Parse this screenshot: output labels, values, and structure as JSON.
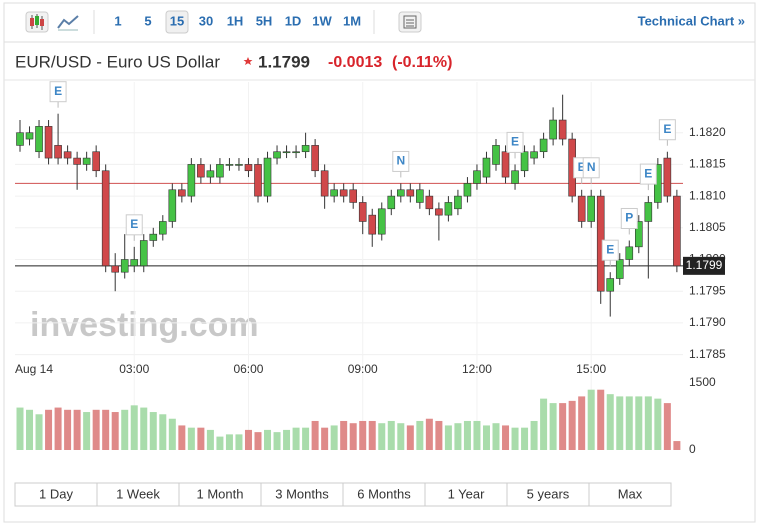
{
  "toolbar": {
    "intervals": [
      "1",
      "5",
      "15",
      "30",
      "1H",
      "5H",
      "1D",
      "1W",
      "1M"
    ],
    "active": "15",
    "link": "Technical Chart »"
  },
  "header": {
    "symbol": "EUR/USD - Euro US Dollar",
    "price": 1.1799,
    "change": -0.0013,
    "change_percent_label": "(-0.11%)"
  },
  "chart_data": {
    "type": "candlestick",
    "categories": [
      "Aug 14",
      null,
      null,
      null,
      null,
      null,
      null,
      null,
      null,
      null,
      null,
      null,
      "03:00",
      null,
      null,
      null,
      null,
      null,
      null,
      null,
      null,
      null,
      null,
      null,
      "06:00",
      null,
      null,
      null,
      null,
      null,
      null,
      null,
      null,
      null,
      null,
      null,
      "09:00",
      null,
      null,
      null,
      null,
      null,
      null,
      null,
      null,
      null,
      null,
      null,
      "12:00",
      null,
      null,
      null,
      null,
      null,
      null,
      null,
      null,
      null,
      null,
      null,
      "15:00",
      null,
      null,
      null,
      null,
      null,
      null,
      null,
      null,
      null
    ],
    "open": [
      1.1818,
      1.1819,
      1.1817,
      1.1821,
      1.1818,
      1.1817,
      1.1816,
      1.1815,
      1.1817,
      1.1814,
      1.1799,
      1.1798,
      1.1799,
      1.1799,
      1.1803,
      1.1804,
      1.1806,
      1.1811,
      1.181,
      1.1815,
      1.1813,
      1.1813,
      1.1815,
      1.1815,
      1.1815,
      1.1815,
      1.181,
      1.1816,
      1.1817,
      1.1817,
      1.1817,
      1.1818,
      1.1814,
      1.181,
      1.1811,
      1.1811,
      1.1809,
      1.1807,
      1.1804,
      1.1808,
      1.181,
      1.1811,
      1.1809,
      1.181,
      1.1808,
      1.1807,
      1.1808,
      1.181,
      1.1812,
      1.1813,
      1.1815,
      1.1817,
      1.1812,
      1.1814,
      1.1816,
      1.1817,
      1.1819,
      1.1822,
      1.1819,
      1.181,
      1.1806,
      1.181,
      1.1795,
      1.1797,
      1.18,
      1.1802,
      1.1806,
      1.1809,
      1.1816,
      1.181
    ],
    "high": [
      1.1822,
      1.1821,
      1.1822,
      1.1822,
      1.1823,
      1.1818,
      1.1817,
      1.1817,
      1.1818,
      1.1815,
      1.1801,
      1.1804,
      1.1802,
      1.1804,
      1.1805,
      1.1807,
      1.1812,
      1.1812,
      1.1816,
      1.1816,
      1.1815,
      1.1816,
      1.1816,
      1.1816,
      1.1816,
      1.1816,
      1.1817,
      1.1818,
      1.1818,
      1.1818,
      1.182,
      1.1819,
      1.1815,
      1.1812,
      1.1812,
      1.1812,
      1.181,
      1.1808,
      1.1809,
      1.1811,
      1.1812,
      1.1812,
      1.1812,
      1.1811,
      1.1809,
      1.181,
      1.1811,
      1.1813,
      1.1815,
      1.1817,
      1.1819,
      1.1818,
      1.1815,
      1.1818,
      1.1818,
      1.182,
      1.1824,
      1.1826,
      1.182,
      1.1811,
      1.1811,
      1.1811,
      1.1798,
      1.1801,
      1.1803,
      1.1807,
      1.181,
      1.1816,
      1.1817,
      1.1811
    ],
    "low": [
      1.1817,
      1.1818,
      1.1816,
      1.1815,
      1.1815,
      1.1815,
      1.1811,
      1.1814,
      1.1813,
      1.1798,
      1.1795,
      1.1797,
      1.1798,
      1.1798,
      1.1802,
      1.1803,
      1.1805,
      1.1809,
      1.1809,
      1.1812,
      1.1812,
      1.1812,
      1.1814,
      1.1814,
      1.1813,
      1.1809,
      1.1809,
      1.1815,
      1.1816,
      1.1816,
      1.1816,
      1.1813,
      1.1808,
      1.1809,
      1.1809,
      1.1808,
      1.1804,
      1.1802,
      1.1803,
      1.1807,
      1.1809,
      1.1809,
      1.1808,
      1.1807,
      1.1803,
      1.1806,
      1.1807,
      1.1809,
      1.1811,
      1.1812,
      1.1814,
      1.1812,
      1.1811,
      1.1813,
      1.1815,
      1.1816,
      1.1818,
      1.1818,
      1.1809,
      1.1805,
      1.1805,
      1.1793,
      1.1791,
      1.1796,
      1.1799,
      1.1801,
      1.1797,
      1.1808,
      1.1809,
      1.1798
    ],
    "close": [
      1.182,
      1.182,
      1.1821,
      1.1816,
      1.1816,
      1.1816,
      1.1815,
      1.1816,
      1.1814,
      1.1799,
      1.1798,
      1.18,
      1.18,
      1.1803,
      1.1804,
      1.1806,
      1.1811,
      1.181,
      1.1815,
      1.1813,
      1.1814,
      1.1815,
      1.1815,
      1.1815,
      1.1814,
      1.181,
      1.1816,
      1.1817,
      1.1817,
      1.1817,
      1.1818,
      1.1814,
      1.181,
      1.1811,
      1.181,
      1.1809,
      1.1806,
      1.1804,
      1.1808,
      1.181,
      1.1811,
      1.181,
      1.1811,
      1.1808,
      1.1807,
      1.1809,
      1.181,
      1.1812,
      1.1814,
      1.1816,
      1.1818,
      1.1813,
      1.1814,
      1.1817,
      1.1817,
      1.1819,
      1.1822,
      1.1819,
      1.181,
      1.1806,
      1.181,
      1.1795,
      1.1797,
      1.18,
      1.1802,
      1.1806,
      1.1809,
      1.1815,
      1.181,
      1.1799
    ],
    "volume": [
      950,
      900,
      800,
      900,
      950,
      900,
      900,
      850,
      900,
      900,
      850,
      900,
      1000,
      950,
      850,
      800,
      700,
      550,
      500,
      500,
      450,
      300,
      350,
      350,
      450,
      400,
      450,
      400,
      450,
      500,
      500,
      650,
      500,
      550,
      650,
      600,
      650,
      650,
      600,
      650,
      600,
      550,
      650,
      700,
      650,
      550,
      600,
      650,
      650,
      550,
      600,
      550,
      500,
      500,
      650,
      1150,
      1050,
      1050,
      1100,
      1200,
      1350,
      1350,
      1250,
      1200,
      1200,
      1200,
      1200,
      1150,
      1050,
      200
    ],
    "ylim": [
      1.1785,
      1.1828
    ],
    "yticks": [
      {
        "value": 1.182,
        "label": "1.1820"
      },
      1.1815,
      {
        "value": 1.181,
        "label": "1.1810"
      },
      1.1805,
      {
        "value": 1.18,
        "label": "1.1800"
      },
      1.1795,
      {
        "value": 1.179,
        "label": "1.1790"
      },
      1.1785
    ],
    "volume_ylim": [
      0,
      1500
    ],
    "volume_ticks": [
      0,
      1500
    ],
    "previous_close": 1.1812,
    "up_color": "#45c245",
    "down_color": "#d0484a",
    "volume_up_color": "#a9dcab",
    "volume_down_color": "#df8a89",
    "grid": true,
    "events": [
      {
        "label": "E",
        "candle": 4
      },
      {
        "label": "E",
        "candle": 12
      },
      {
        "label": "N",
        "candle": 40
      },
      {
        "label": "E",
        "candle": 52
      },
      {
        "label": "E",
        "candle": 59
      },
      {
        "label": "N",
        "candle": 60
      },
      {
        "label": "E",
        "candle": 62
      },
      {
        "label": "P",
        "candle": 64
      },
      {
        "label": "E",
        "candle": 66
      },
      {
        "label": "E",
        "candle": 68
      }
    ],
    "watermark": "investing.com"
  },
  "ranges": [
    "1 Day",
    "1 Week",
    "1 Month",
    "3 Months",
    "6 Months",
    "1 Year",
    "5 years",
    "Max"
  ]
}
